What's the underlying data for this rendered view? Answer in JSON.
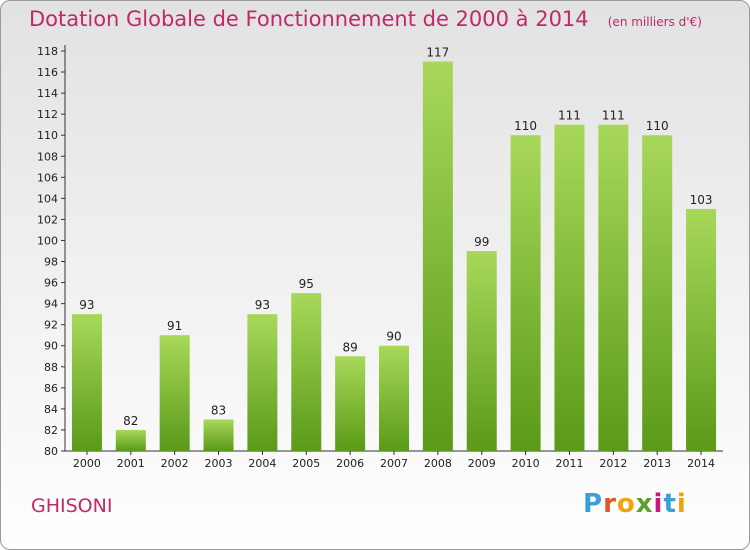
{
  "title": "Dotation Globale de Fonctionnement de 2000 à 2014",
  "subtitle": "(en milliers d'€)",
  "commune": "GHISONI",
  "logo": {
    "letters": [
      "P",
      "r",
      "o",
      "x",
      "i",
      "t",
      "i"
    ],
    "colors": [
      "#3a9fd8",
      "#e2572a",
      "#f2a20b",
      "#5aa02c",
      "#c7197a",
      "#3a9fd8",
      "#f2a20b"
    ]
  },
  "colors": {
    "accent": "#c0286a",
    "bar_light": "#a8d85a",
    "bar_dark": "#5a9a18"
  },
  "chart_data": {
    "type": "bar",
    "categories": [
      "2000",
      "2001",
      "2002",
      "2003",
      "2004",
      "2005",
      "2006",
      "2007",
      "2008",
      "2009",
      "2010",
      "2011",
      "2012",
      "2013",
      "2014"
    ],
    "values": [
      93,
      82,
      91,
      83,
      93,
      95,
      89,
      90,
      117,
      99,
      110,
      111,
      111,
      110,
      103
    ],
    "title": "Dotation Globale de Fonctionnement de 2000 à 2014",
    "ylabel": "(en milliers d'€)",
    "ylim": [
      80,
      118
    ],
    "yticks": [
      80,
      82,
      84,
      86,
      88,
      90,
      92,
      94,
      96,
      98,
      100,
      102,
      104,
      106,
      108,
      110,
      112,
      114,
      116,
      118
    ],
    "grid": false,
    "legend": "none"
  }
}
